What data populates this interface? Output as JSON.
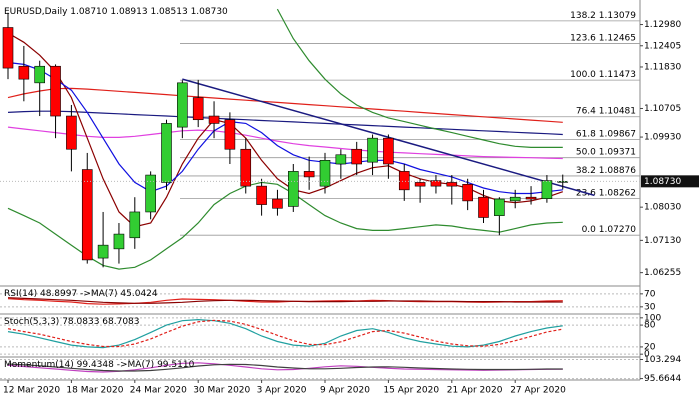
{
  "chart_data": [
    {
      "type": "candlestick",
      "title": "EURUSD,Daily",
      "ohlc_header": [
        {
          "value": 1.0871,
          "label": "1.08710"
        },
        1.08913,
        1.08513,
        {
          "value": 1.0873,
          "label": "1.08730"
        }
      ],
      "categories": [
        "12 Mar 2020",
        null,
        null,
        null,
        "18 Mar 2020",
        null,
        null,
        null,
        "24 Mar 2020",
        null,
        null,
        null,
        "30 Mar 2020",
        null,
        null,
        null,
        "3 Apr 2020",
        null,
        null,
        null,
        "9 Apr 2020",
        null,
        null,
        null,
        "15 Apr 2020",
        null,
        null,
        null,
        "21 Apr 2020",
        null,
        null,
        null,
        "27 Apr 2020",
        null,
        null,
        null
      ],
      "open": [
        1.129,
        1.1185,
        1.114,
        1.1185,
        1.105,
        1.0905,
        1.0665,
        1.069,
        1.072,
        1.079,
        1.087,
        1.102,
        1.11,
        1.105,
        1.104,
        1.096,
        1.086,
        1.0825,
        1.0805,
        1.09,
        1.086,
        1.092,
        1.096,
        1.0925,
        1.099,
        1.09,
        1.087,
        1.0875,
        1.087,
        1.0865,
        1.083,
        1.078,
        1.082,
        1.083,
        1.0826,
        1.0871
      ],
      "high": [
        1.133,
        1.124,
        1.12,
        1.119,
        1.108,
        1.095,
        1.079,
        1.076,
        1.083,
        1.09,
        1.104,
        1.1147,
        1.1148,
        1.109,
        1.106,
        1.099,
        1.088,
        1.085,
        1.092,
        1.094,
        1.095,
        1.096,
        1.098,
        1.1,
        1.1,
        1.092,
        1.088,
        1.089,
        1.089,
        1.088,
        1.085,
        1.083,
        1.085,
        1.086,
        1.089,
        1.08913
      ],
      "low": [
        1.115,
        1.109,
        1.105,
        1.099,
        1.09,
        1.065,
        1.064,
        1.065,
        1.069,
        1.077,
        1.085,
        1.099,
        1.102,
        1.099,
        1.092,
        1.084,
        1.078,
        1.078,
        1.079,
        1.085,
        1.084,
        1.088,
        1.089,
        1.089,
        1.088,
        1.082,
        1.0815,
        1.084,
        1.081,
        1.0795,
        1.076,
        1.0727,
        1.08,
        1.081,
        1.0815,
        1.08513
      ],
      "close": [
        1.118,
        1.115,
        1.1185,
        1.105,
        1.096,
        1.066,
        1.07,
        1.073,
        1.079,
        1.089,
        1.103,
        1.114,
        1.104,
        1.103,
        1.096,
        1.086,
        1.081,
        1.08,
        1.09,
        1.0885,
        1.093,
        1.0945,
        1.092,
        1.099,
        1.092,
        1.085,
        1.086,
        1.086,
        1.086,
        1.082,
        1.0775,
        1.0825,
        1.083,
        1.0825,
        1.0875,
        1.0873
      ],
      "up_color": "#32cd32",
      "down_color": "#ff0000",
      "ylim": [
        1.0592,
        1.1351
      ],
      "yticks": [
        {
          "value": 1.1298,
          "label": "1.12980"
        },
        1.12405,
        {
          "value": 1.1183,
          "label": "1.11830"
        },
        1.10705,
        {
          "value": 1.0993,
          "label": "1.09930"
        },
        {
          "value": 1.0803,
          "label": "1.08030"
        },
        {
          "value": 1.0713,
          "label": "1.07130"
        },
        1.06255
      ],
      "series": [
        {
          "color": "#e0201a",
          "values": [
            1.11,
            1.111,
            1.1118,
            1.1124,
            1.1125,
            1.1123,
            1.112,
            1.1117,
            1.1114,
            1.1111,
            1.1108,
            1.1105,
            1.1102,
            1.1099,
            1.1096,
            1.1093,
            1.109,
            1.1087,
            1.1084,
            1.1081,
            1.1078,
            1.1075,
            1.1072,
            1.1069,
            1.1066,
            1.1063,
            1.106,
            1.1057,
            1.1054,
            1.1051,
            1.1048,
            1.1045,
            1.1042,
            1.1039,
            1.1036,
            1.1033
          ]
        },
        {
          "color": "#1a1a80",
          "values": [
            1.106,
            1.1062,
            1.1063,
            1.1063,
            1.1062,
            1.106,
            1.1058,
            1.1056,
            1.1054,
            1.1052,
            1.105,
            1.1048,
            1.1046,
            1.1044,
            1.1042,
            1.104,
            1.1038,
            1.1036,
            1.1034,
            1.1032,
            1.103,
            1.1028,
            1.1026,
            1.1024,
            1.1022,
            1.102,
            1.1018,
            1.1016,
            1.1014,
            1.1012,
            1.101,
            1.1008,
            1.1006,
            1.1004,
            1.1002,
            1.1
          ]
        },
        {
          "color": "#e040e0",
          "values": [
            1.102,
            1.1015,
            1.101,
            1.1005,
            1.1,
            1.0995,
            1.0992,
            1.0992,
            1.0995,
            1.1,
            1.1005,
            1.101,
            1.1012,
            1.101,
            1.1005,
            1.0998,
            1.099,
            1.0982,
            1.0975,
            1.097,
            1.0966,
            1.0962,
            1.0958,
            1.0955,
            1.0952,
            1.095,
            1.0948,
            1.0946,
            1.0944,
            1.0942,
            1.094,
            1.0939,
            1.0938,
            1.0937,
            1.0936,
            1.0935
          ]
        },
        {
          "color": "#8b0000",
          "values": [
            1.1275,
            1.125,
            1.1215,
            1.117,
            1.11,
            1.099,
            1.088,
            1.079,
            1.075,
            1.076,
            1.083,
            1.092,
            1.099,
            1.104,
            1.103,
            1.099,
            1.093,
            1.088,
            1.085,
            1.084,
            1.0855,
            1.0875,
            1.0895,
            1.091,
            1.0915,
            1.0895,
            1.088,
            1.087,
            1.0865,
            1.0855,
            1.0835,
            1.082,
            1.0815,
            1.082,
            1.083,
            1.0845
          ]
        },
        {
          "color": "#1010e0",
          "values": [
            1.1195,
            1.119,
            1.1175,
            1.115,
            1.112,
            1.106,
            1.099,
            1.092,
            1.087,
            1.0845,
            1.086,
            1.09,
            1.096,
            1.101,
            1.1035,
            1.103,
            1.1005,
            1.097,
            1.0945,
            1.093,
            1.0925,
            1.092,
            1.0925,
            1.093,
            1.093,
            1.092,
            1.0905,
            1.0895,
            1.0885,
            1.087,
            1.0855,
            1.0845,
            1.084,
            1.084,
            1.0845,
            1.085
          ]
        },
        {
          "color": "#2e8b2e",
          "values": [
            null,
            null,
            null,
            null,
            null,
            null,
            null,
            null,
            null,
            null,
            null,
            null,
            null,
            null,
            null,
            null,
            null,
            1.134,
            1.126,
            1.12,
            1.115,
            1.111,
            1.108,
            1.106,
            1.1045,
            1.1035,
            1.1025,
            1.1015,
            1.1005,
            1.0995,
            1.0985,
            1.0975,
            1.0968,
            1.0965,
            1.0965,
            1.0965
          ]
        },
        {
          "color": "#2e8b2e",
          "values": [
            1.08,
            1.078,
            1.076,
            1.073,
            1.07,
            1.067,
            1.0645,
            1.0635,
            1.064,
            1.066,
            1.069,
            1.072,
            1.076,
            1.081,
            1.084,
            1.086,
            1.087,
            1.0865,
            1.084,
            1.081,
            1.078,
            1.076,
            1.0745,
            1.074,
            1.074,
            1.0745,
            1.075,
            1.0755,
            1.0752,
            1.0745,
            1.074,
            1.0735,
            1.0745,
            1.0755,
            1.076,
            1.0762
          ]
        }
      ],
      "fib_levels": [
        {
          "level": "138.2",
          "price": 1.13079
        },
        {
          "level": "123.6",
          "price": 1.12465
        },
        {
          "level": "100.0",
          "price": 1.11473
        },
        {
          "level": "76.4",
          "price": 1.10481
        },
        {
          "level": "61.8",
          "price": 1.09867
        },
        {
          "level": "50.0",
          "price": 1.09371
        },
        {
          "level": "38.2",
          "price": 1.08876
        },
        {
          "level": "23.6",
          "price": 1.08262
        },
        {
          "level": "0.0",
          "price": {
            "value": 1.0727,
            "label": "1.07270"
          }
        }
      ],
      "trendline": {
        "color": "#1a1a80",
        "x": [
          11,
          37
        ],
        "y": [
          1.115,
          1.0835
        ]
      }
    },
    {
      "type": "line",
      "title": "RSI(14)",
      "ylim": [
        11,
        88
      ],
      "yticks": [
        70,
        30
      ],
      "series": [
        {
          "color": "#e0201a",
          "last": 48.8997,
          "values": [
            55,
            52,
            50,
            47,
            45,
            40,
            38,
            39,
            41,
            44,
            50,
            54,
            53,
            52,
            50,
            47,
            45,
            45,
            47,
            47,
            48,
            49,
            48,
            50,
            49,
            47,
            46,
            46,
            46,
            45,
            44,
            45,
            46,
            46,
            48,
            49
          ]
        },
        {
          "name": "->MA(7)",
          "color": "#8b0000",
          "last": 45.0424,
          "values": [
            58,
            56,
            54,
            52,
            50,
            47,
            44,
            42,
            41,
            41,
            42,
            44,
            47,
            49,
            50,
            50,
            49,
            48,
            47,
            46,
            46,
            46,
            47,
            47,
            48,
            48,
            48,
            47,
            47,
            46,
            46,
            46,
            45,
            45,
            45,
            45
          ]
        }
      ]
    },
    {
      "type": "line",
      "title": "Stoch(5,3,3)",
      "ylim": [
        -5,
        105
      ],
      "yticks": [
        100,
        80,
        20,
        0
      ],
      "series": [
        {
          "color": "#20a0a0",
          "last": 78.0833,
          "values": [
            62,
            55,
            45,
            35,
            25,
            20,
            18,
            25,
            40,
            60,
            80,
            92,
            95,
            92,
            85,
            70,
            50,
            35,
            25,
            22,
            30,
            50,
            65,
            70,
            60,
            45,
            35,
            28,
            22,
            20,
            25,
            35,
            50,
            62,
            72,
            78
          ]
        },
        {
          "color": "#e0201a",
          "dashed": true,
          "last": 68.7083,
          "values": [
            70,
            62,
            55,
            45,
            35,
            27,
            21,
            21,
            28,
            42,
            60,
            77,
            89,
            93,
            91,
            82,
            68,
            52,
            37,
            27,
            26,
            34,
            48,
            62,
            65,
            58,
            47,
            36,
            28,
            23,
            22,
            27,
            37,
            49,
            61,
            69
          ]
        }
      ]
    },
    {
      "type": "line",
      "title": "Momentum(14)",
      "ylim": [
        95.5,
        103.5
      ],
      "yticks": [
        103.294,
        95.6644
      ],
      "series": [
        {
          "color": "#c040c0",
          "last": 99.4348,
          "values": [
            101,
            100.5,
            100,
            99.5,
            99,
            98.5,
            98.3,
            98.6,
            99.2,
            100,
            101,
            101.8,
            102,
            101.6,
            101,
            100.3,
            99.6,
            99.2,
            99.3,
            99.8,
            100.4,
            100.8,
            100.6,
            100.2,
            99.8,
            99.5,
            99.4,
            99.3,
            99.2,
            99.1,
            99.0,
            99.1,
            99.2,
            99.3,
            99.4,
            99.43
          ]
        },
        {
          "name": "->MA(7)",
          "color": "#404040",
          "last": {
            "value": 99.511,
            "label": "99.5110"
          },
          "values": [
            101.5,
            101.2,
            100.8,
            100.3,
            99.8,
            99.3,
            98.9,
            98.7,
            98.7,
            98.9,
            99.4,
            100,
            100.7,
            101.2,
            101.4,
            101.3,
            100.9,
            100.3,
            99.9,
            99.6,
            99.6,
            99.8,
            100.1,
            100.3,
            100.4,
            100.2,
            99.9,
            99.7,
            99.5,
            99.4,
            99.3,
            99.3,
            99.3,
            99.4,
            99.5,
            99.51
          ]
        }
      ]
    }
  ]
}
